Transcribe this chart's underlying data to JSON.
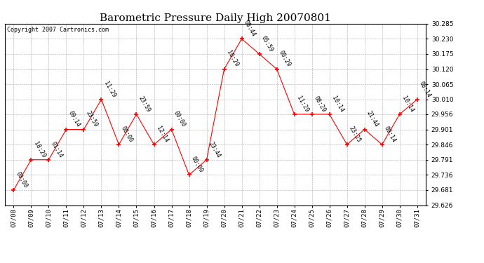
{
  "title": "Barometric Pressure Daily High 20070801",
  "copyright": "Copyright 2007 Cartronics.com",
  "x_labels": [
    "07/08",
    "07/09",
    "07/10",
    "07/11",
    "07/12",
    "07/13",
    "07/14",
    "07/15",
    "07/16",
    "07/17",
    "07/18",
    "07/19",
    "07/20",
    "07/21",
    "07/22",
    "07/23",
    "07/24",
    "07/25",
    "07/26",
    "07/27",
    "07/28",
    "07/29",
    "07/30",
    "07/31"
  ],
  "x_indices": [
    0,
    1,
    2,
    3,
    4,
    5,
    6,
    7,
    8,
    9,
    10,
    11,
    12,
    13,
    14,
    15,
    16,
    17,
    18,
    19,
    20,
    21,
    22,
    23
  ],
  "y_values": [
    29.681,
    29.791,
    29.791,
    29.901,
    29.901,
    30.01,
    29.846,
    29.956,
    29.846,
    29.901,
    29.736,
    29.791,
    30.12,
    30.23,
    30.175,
    30.12,
    29.956,
    29.956,
    29.956,
    29.846,
    29.901,
    29.846,
    29.956,
    30.01
  ],
  "point_labels": [
    "00:00",
    "18:29",
    "01:14",
    "09:14",
    "23:59",
    "11:29",
    "00:00",
    "23:59",
    "12:14",
    "00:00",
    "00:00",
    "23:44",
    "10:29",
    "08:44",
    "05:59",
    "00:29",
    "11:29",
    "08:29",
    "10:14",
    "23:25",
    "21:44",
    "09:14",
    "10:14",
    "08:14"
  ],
  "ylim_min": 29.626,
  "ylim_max": 30.285,
  "yticks": [
    29.626,
    29.681,
    29.736,
    29.791,
    29.846,
    29.901,
    29.956,
    30.01,
    30.065,
    30.12,
    30.175,
    30.23,
    30.285
  ],
  "line_color": "red",
  "marker_color": "red",
  "background_color": "white",
  "grid_color": "#aaaaaa",
  "title_fontsize": 11,
  "label_fontsize": 6,
  "tick_fontsize": 6.5,
  "copyright_fontsize": 6
}
